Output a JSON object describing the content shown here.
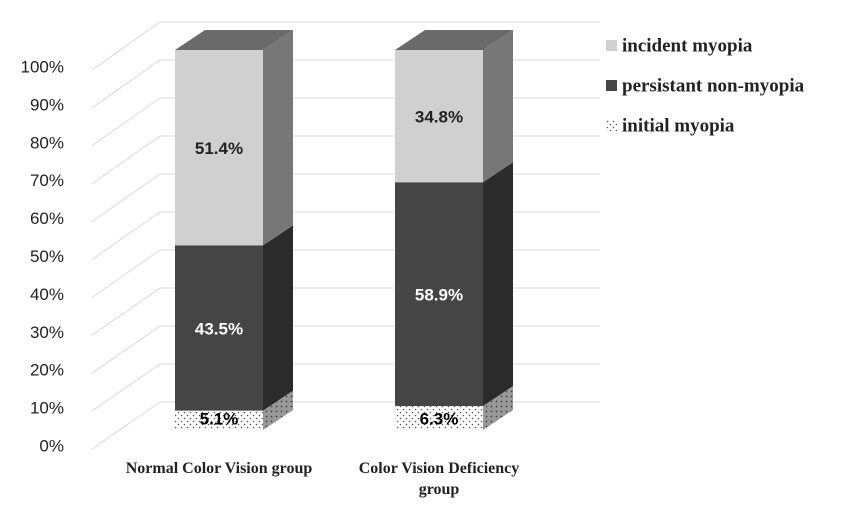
{
  "chart_data": {
    "type": "stacked-bar-3d",
    "categories": [
      "Normal Color Vision group",
      "Color Vision Deficiency group"
    ],
    "series": [
      {
        "name": "initial myopia",
        "color": "#ffffff",
        "pattern": "dots",
        "label_color": "#000000",
        "values": [
          5.1,
          6.3
        ],
        "value_labels": [
          "5.1%",
          "6.3%"
        ]
      },
      {
        "name": "persistant non-myopia",
        "color": "#454545",
        "label_color": "#ffffff",
        "values": [
          43.5,
          58.9
        ],
        "value_labels": [
          "43.5%",
          "58.9%"
        ]
      },
      {
        "name": "incident myopia",
        "color": "#d0d0d0",
        "label_color": "#222222",
        "values": [
          51.4,
          34.8
        ],
        "value_labels": [
          "51.4%",
          "34.8%"
        ]
      }
    ],
    "ylim": [
      0,
      100
    ],
    "yticks": [
      {
        "value": 0,
        "label": "0%"
      },
      {
        "value": 10,
        "label": "10%"
      },
      {
        "value": 20,
        "label": "20%"
      },
      {
        "value": 30,
        "label": "30%"
      },
      {
        "value": 40,
        "label": "40%"
      },
      {
        "value": 50,
        "label": "50%"
      },
      {
        "value": 60,
        "label": "60%"
      },
      {
        "value": 70,
        "label": "70%"
      },
      {
        "value": 80,
        "label": "80%"
      },
      {
        "value": 90,
        "label": "90%"
      },
      {
        "value": 100,
        "label": "100%"
      }
    ],
    "grid": true,
    "legend": "right"
  }
}
